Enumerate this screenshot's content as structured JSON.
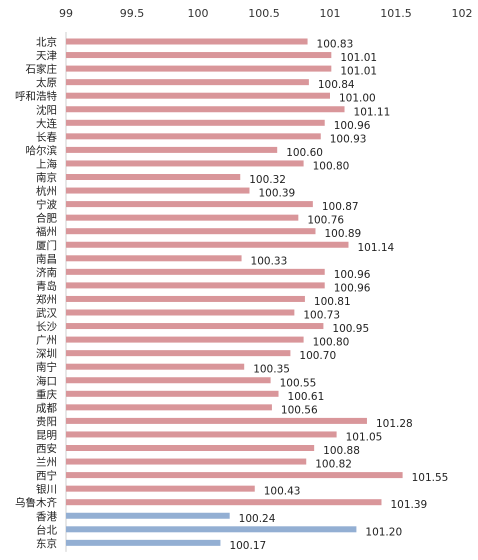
{
  "chart_data": {
    "type": "bar",
    "orientation": "horizontal",
    "xlim": [
      99,
      102
    ],
    "xticks": [
      "99",
      "99.5",
      "100",
      "100.5",
      "101",
      "101.5",
      "102"
    ],
    "axis_position": "top",
    "grid": false,
    "legend": null,
    "title": "",
    "xlabel": "",
    "ylabel": "",
    "colors": {
      "mainland": "#d9969a",
      "special": "#93afd3"
    },
    "categories": [
      "北京",
      "天津",
      "石家庄",
      "太原",
      "呼和浩特",
      "沈阳",
      "大连",
      "长春",
      "哈尔滨",
      "上海",
      "南京",
      "杭州",
      "宁波",
      "合肥",
      "福州",
      "厦门",
      "南昌",
      "济南",
      "青岛",
      "郑州",
      "武汉",
      "长沙",
      "广州",
      "深圳",
      "南宁",
      "海口",
      "重庆",
      "成都",
      "贵阳",
      "昆明",
      "西安",
      "兰州",
      "西宁",
      "银川",
      "乌鲁木齐",
      "香港",
      "台北",
      "东京"
    ],
    "values": [
      100.83,
      101.01,
      101.01,
      100.84,
      101.0,
      101.11,
      100.96,
      100.93,
      100.6,
      100.8,
      100.32,
      100.39,
      100.87,
      100.76,
      100.89,
      101.14,
      100.33,
      100.96,
      100.96,
      100.81,
      100.73,
      100.95,
      100.8,
      100.7,
      100.35,
      100.55,
      100.61,
      100.56,
      101.28,
      101.05,
      100.88,
      100.82,
      101.55,
      100.43,
      101.39,
      100.24,
      101.2,
      100.17
    ],
    "value_labels": [
      "100.83",
      "101.01",
      "101.01",
      "100.84",
      "101.00",
      "101.11",
      "100.96",
      "100.93",
      "100.60",
      "100.80",
      "100.32",
      "100.39",
      "100.87",
      "100.76",
      "100.89",
      "101.14",
      "100.33",
      "100.96",
      "100.96",
      "100.81",
      "100.73",
      "100.95",
      "100.80",
      "100.70",
      "100.35",
      "100.55",
      "100.61",
      "100.56",
      "101.28",
      "101.05",
      "100.88",
      "100.82",
      "101.55",
      "100.43",
      "101.39",
      "100.24",
      "101.20",
      "100.17"
    ],
    "highlighted": [
      "香港",
      "台北",
      "东京"
    ]
  }
}
